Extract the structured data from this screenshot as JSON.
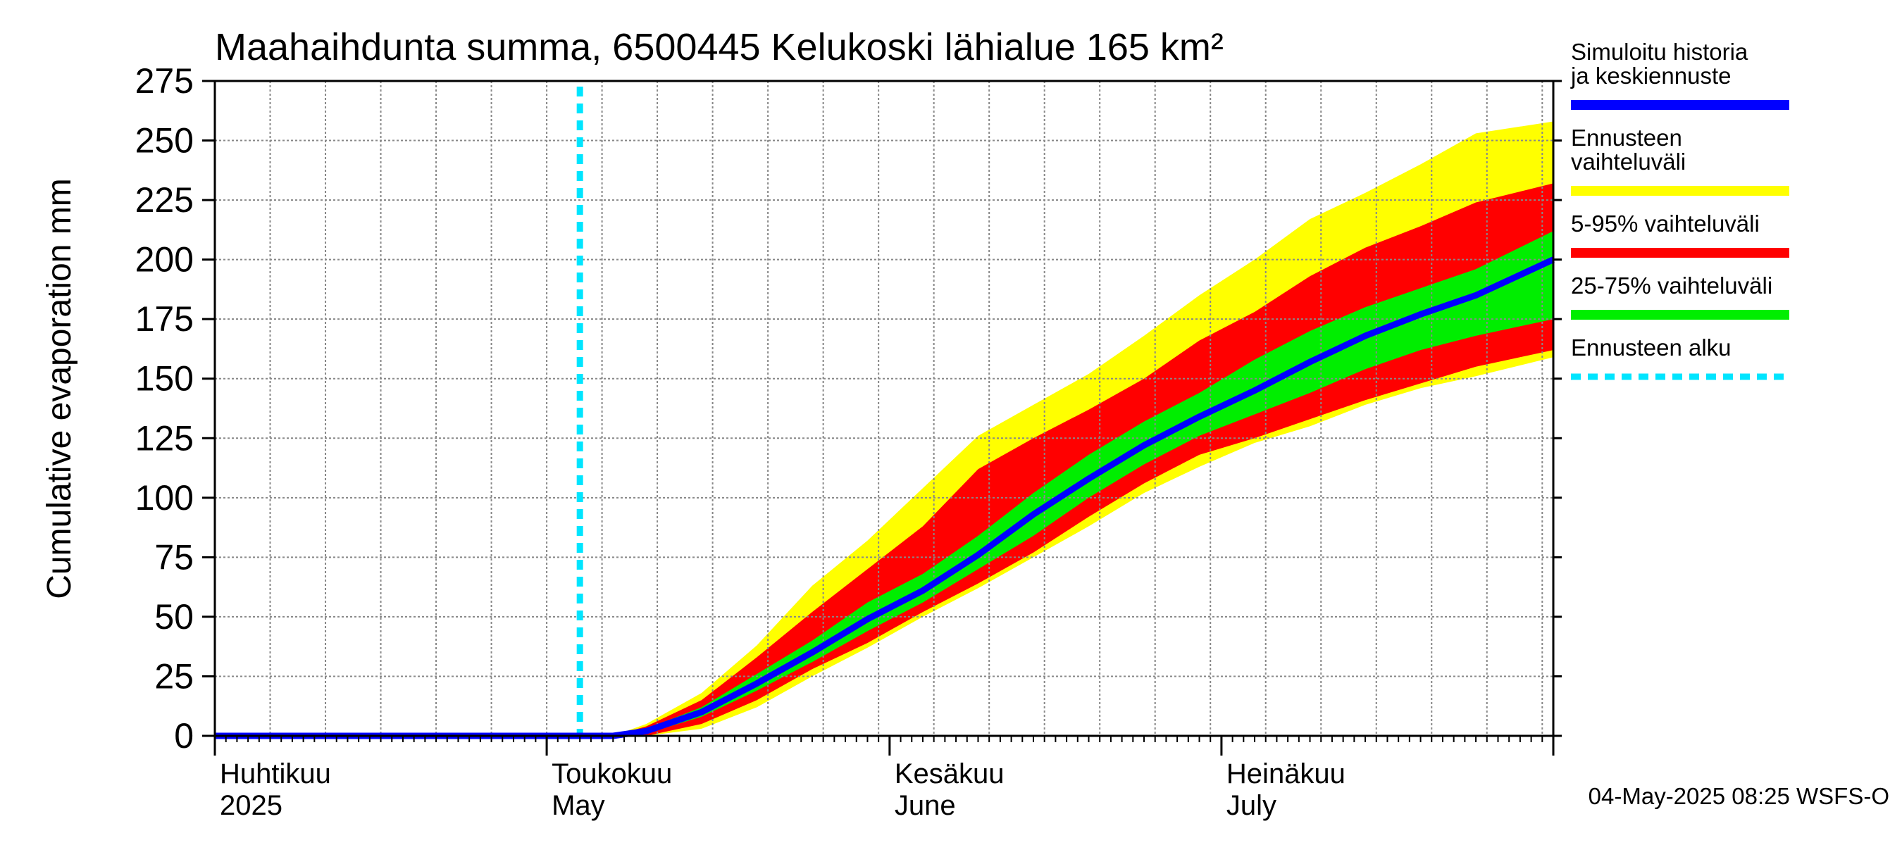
{
  "chart_data": {
    "type": "area",
    "title": "Maahaihdunta summa, 6500445 Kelukoski lähialue 165 km²",
    "ylabel": "Cumulative evaporation   mm",
    "ylim": [
      0,
      275
    ],
    "yticks": [
      0,
      25,
      50,
      75,
      100,
      125,
      150,
      175,
      200,
      225,
      250,
      275
    ],
    "xlim": [
      "2025-04-01",
      "2025-07-31"
    ],
    "grid": true,
    "legend_position": "right",
    "months": [
      {
        "date": "2025-04-01",
        "fi": "Huhtikuu",
        "en": "2025"
      },
      {
        "date": "2025-05-01",
        "fi": "Toukokuu",
        "en": "May"
      },
      {
        "date": "2025-06-01",
        "fi": "Kesäkuu",
        "en": "June"
      },
      {
        "date": "2025-07-01",
        "fi": "Heinäkuu",
        "en": "July"
      }
    ],
    "forecast_start": "2025-05-04",
    "x": [
      "2025-04-01",
      "2025-05-04",
      "2025-05-07",
      "2025-05-10",
      "2025-05-15",
      "2025-05-20",
      "2025-05-25",
      "2025-05-30",
      "2025-06-04",
      "2025-06-09",
      "2025-06-14",
      "2025-06-19",
      "2025-06-24",
      "2025-06-29",
      "2025-07-04",
      "2025-07-09",
      "2025-07-14",
      "2025-07-19",
      "2025-07-24",
      "2025-07-31"
    ],
    "series": [
      {
        "name": "Simuloitu historia ja keskiennuste",
        "color": "#0000ff",
        "values": [
          0,
          0,
          0,
          2,
          10,
          22,
          35,
          49,
          61,
          76,
          93,
          108,
          122,
          134,
          145,
          157,
          168,
          177,
          185,
          200
        ]
      },
      {
        "name": "Ennusteen vaihteluväli",
        "color": "#ffff00",
        "low": [
          0,
          0,
          0,
          0,
          3,
          12,
          25,
          37,
          50,
          62,
          75,
          88,
          102,
          113,
          123,
          130,
          139,
          146,
          151,
          159
        ],
        "high": [
          0,
          0,
          0,
          5,
          18,
          38,
          63,
          82,
          104,
          126,
          139,
          152,
          168,
          185,
          200,
          217,
          228,
          240,
          253,
          258
        ]
      },
      {
        "name": "5-95% vaihteluväli",
        "color": "#ff0000",
        "low": [
          0,
          0,
          0,
          0,
          5,
          15,
          28,
          39,
          52,
          64,
          77,
          92,
          106,
          118,
          125,
          133,
          141,
          148,
          155,
          162
        ],
        "high": [
          0,
          0,
          0,
          4,
          15,
          33,
          52,
          70,
          88,
          112,
          125,
          137,
          150,
          166,
          178,
          193,
          205,
          214,
          224,
          232
        ]
      },
      {
        "name": "25-75% vaihteluväli",
        "color": "#00ee00",
        "low": [
          0,
          0,
          0,
          1,
          8,
          19,
          31,
          44,
          56,
          70,
          84,
          100,
          114,
          126,
          135,
          144,
          154,
          162,
          168,
          175
        ],
        "high": [
          0,
          0,
          0,
          3,
          12,
          26,
          40,
          56,
          68,
          84,
          102,
          118,
          132,
          144,
          158,
          170,
          180,
          188,
          196,
          212
        ]
      }
    ],
    "forecast_start_label": "Ennusteen alku",
    "forecast_start_color": "#00e5ff",
    "timestamp": "04-May-2025 08:25 WSFS-O"
  }
}
